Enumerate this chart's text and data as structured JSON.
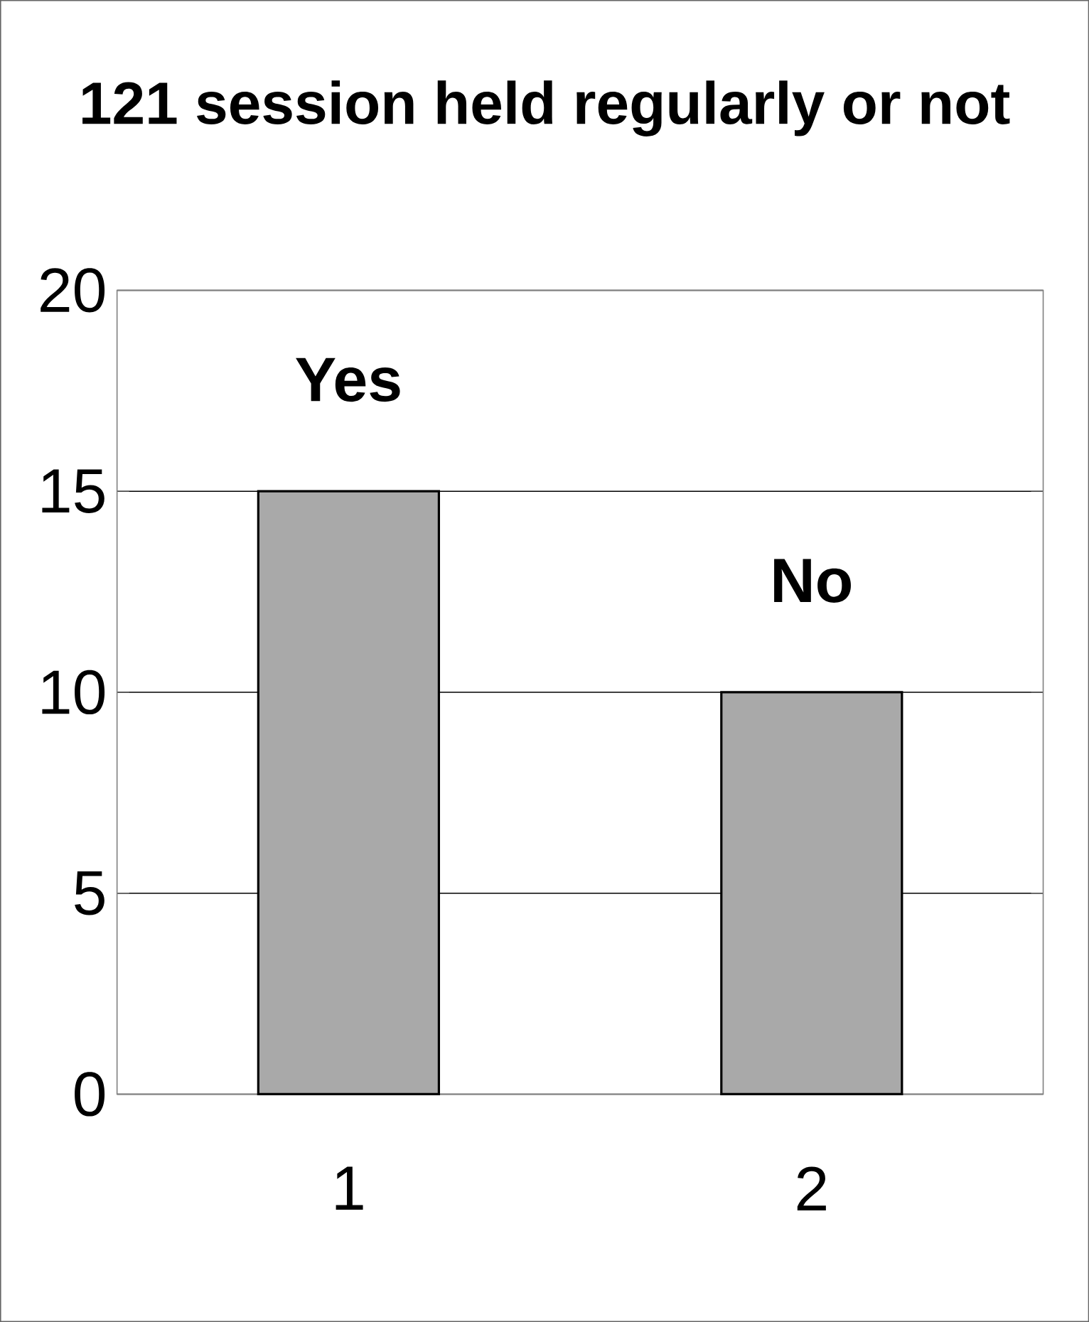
{
  "chart_data": {
    "type": "bar",
    "title": "121 session held regularly or not",
    "categories": [
      "1",
      "2"
    ],
    "values": [
      15,
      10
    ],
    "color": "#a9a9a9",
    "ylim": [
      0,
      20
    ],
    "yticks": [
      0,
      5,
      10,
      15,
      20
    ],
    "grid": "y",
    "annotations": [
      {
        "text": "Yes",
        "x": "1",
        "y": 15
      },
      {
        "text": "No",
        "x": "2",
        "y": 10
      }
    ]
  }
}
